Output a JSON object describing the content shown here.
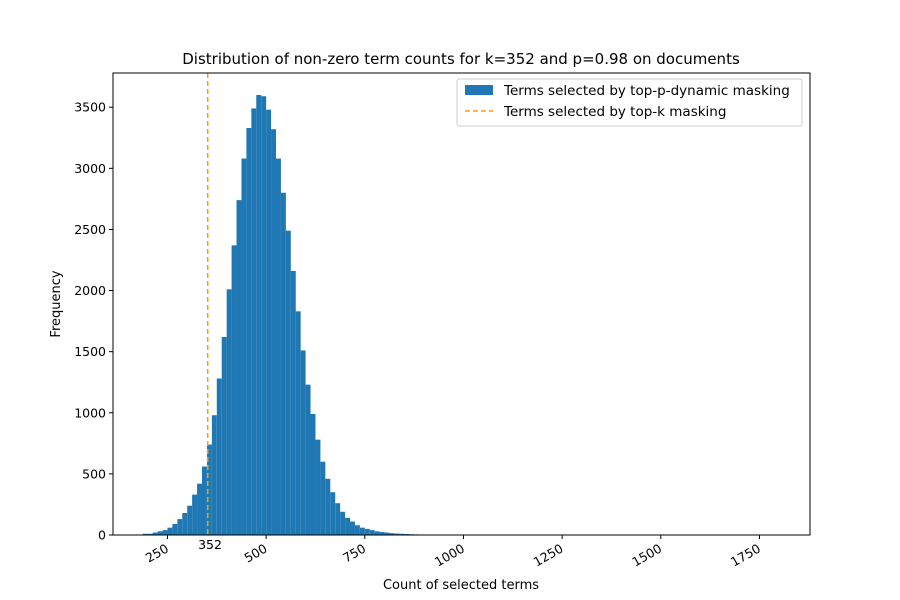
{
  "chart_data": {
    "type": "bar",
    "title": "Distribution of non-zero term counts for k=352 and p=0.98 on documents",
    "xlabel": "Count of selected terms",
    "ylabel": "Frequency",
    "xlim": [
      112,
      1878
    ],
    "ylim": [
      0,
      3780
    ],
    "x_ticks": [
      250,
      500,
      750,
      1000,
      1250,
      1500,
      1750
    ],
    "y_ticks": [
      0,
      500,
      1000,
      1500,
      2000,
      2500,
      3000,
      3500
    ],
    "grid": false,
    "legend_position": "top-right",
    "bin_width": 12.5,
    "bins_start": 187.5,
    "series": [
      {
        "name": "Terms selected by top-p-dynamic masking",
        "color": "#1f77b4",
        "values": [
          10,
          10,
          20,
          30,
          40,
          60,
          90,
          130,
          180,
          240,
          330,
          420,
          560,
          740,
          980,
          1280,
          1620,
          2010,
          2370,
          2740,
          3080,
          3330,
          3490,
          3600,
          3590,
          3480,
          3320,
          3080,
          2800,
          2490,
          2160,
          1830,
          1510,
          1230,
          990,
          780,
          600,
          460,
          350,
          260,
          190,
          140,
          110,
          80,
          60,
          50,
          40,
          30,
          25,
          20,
          15,
          12,
          10,
          8,
          6,
          5,
          4,
          3,
          3,
          2,
          2,
          2,
          1,
          1,
          1,
          1,
          1
        ]
      },
      {
        "name": "Terms selected by top-k masking",
        "color": "#ff9f00",
        "style": "dashed",
        "x": 352
      }
    ],
    "annotations": [
      {
        "text": "352",
        "x": 352
      }
    ]
  }
}
